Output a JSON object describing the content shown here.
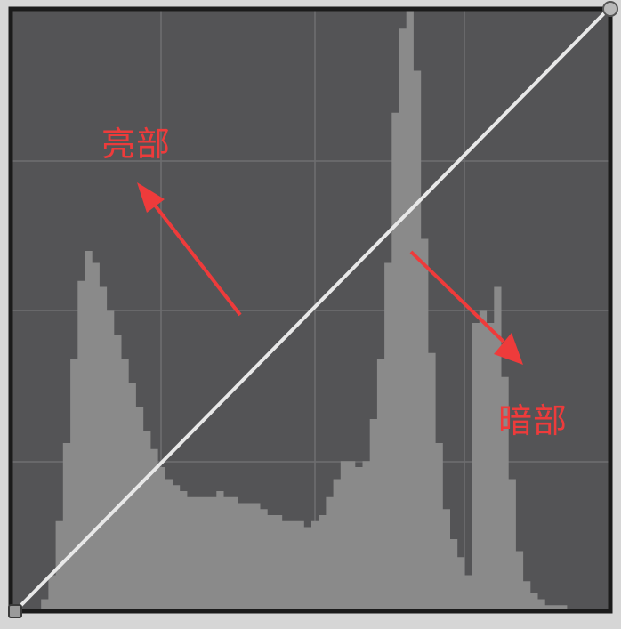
{
  "curves_panel": {
    "labels": {
      "highlights": "亮部",
      "shadows": "暗部"
    },
    "colors": {
      "graph_background": "#545456",
      "frame": "#1b1b1b",
      "grid": "#6e6e70",
      "histogram_fill": "#8a8a8a",
      "curve_line": "#e8e8e8",
      "annotation": "#ee3b3b"
    },
    "curve": {
      "points": [
        [
          0,
          0
        ],
        [
          255,
          255
        ]
      ]
    },
    "histogram": {
      "levels": [
        0,
        2,
        6,
        15,
        28,
        42,
        55,
        60,
        58,
        54,
        50,
        46,
        42,
        38,
        34,
        30,
        27,
        24,
        22,
        21,
        20,
        19,
        19,
        19,
        19,
        20,
        19,
        19,
        18,
        18,
        18,
        17,
        16,
        16,
        15,
        15,
        15,
        14,
        15,
        16,
        19,
        22,
        25,
        25,
        24,
        25,
        32,
        42,
        58,
        83,
        97,
        100,
        90,
        62,
        43,
        28,
        17,
        12,
        9,
        6,
        48,
        50,
        48,
        54,
        39,
        22,
        10,
        5,
        3,
        2,
        1,
        1,
        1,
        0,
        0,
        0
      ]
    }
  }
}
